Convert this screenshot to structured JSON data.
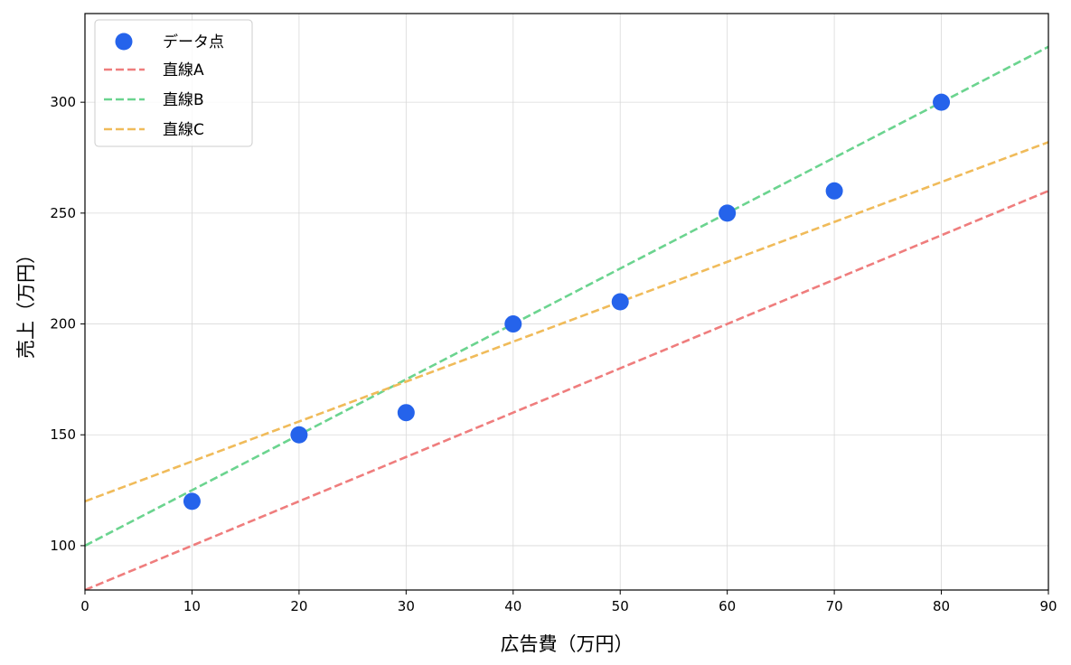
{
  "chart_data": {
    "type": "scatter",
    "title": "",
    "xlabel": "広告費（万円）",
    "ylabel": "売上（万円）",
    "xlim": [
      0,
      90
    ],
    "ylim": [
      80,
      340
    ],
    "xticks": [
      0,
      10,
      20,
      30,
      40,
      50,
      60,
      70,
      80,
      90
    ],
    "yticks": [
      100,
      150,
      200,
      250,
      300
    ],
    "grid": true,
    "legend_position": "top-left",
    "points": {
      "name": "データ点",
      "color": "#2563eb",
      "x": [
        10,
        20,
        30,
        40,
        50,
        60,
        70,
        80
      ],
      "y": [
        120,
        150,
        160,
        200,
        210,
        250,
        260,
        300
      ]
    },
    "lines": [
      {
        "name": "直線A",
        "color": "#ef7d7d",
        "slope": 2.0,
        "intercept": 80
      },
      {
        "name": "直線B",
        "color": "#6bd48f",
        "slope": 2.5,
        "intercept": 100
      },
      {
        "name": "直線C",
        "color": "#f0bb5a",
        "slope": 1.8,
        "intercept": 120
      }
    ]
  }
}
